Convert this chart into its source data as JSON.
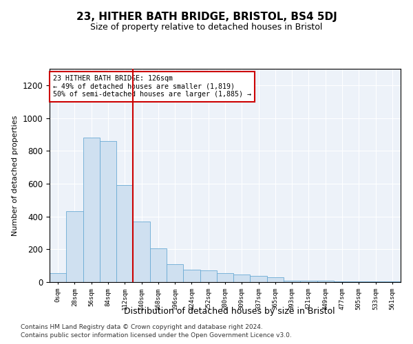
{
  "title": "23, HITHER BATH BRIDGE, BRISTOL, BS4 5DJ",
  "subtitle": "Size of property relative to detached houses in Bristol",
  "xlabel": "Distribution of detached houses by size in Bristol",
  "ylabel": "Number of detached properties",
  "bar_color": "#cfe0f0",
  "bar_edge_color": "#6aaad4",
  "vline_color": "#cc0000",
  "vline_position": 4.5,
  "annotation_text": "23 HITHER BATH BRIDGE: 126sqm\n← 49% of detached houses are smaller (1,819)\n50% of semi-detached houses are larger (1,885) →",
  "annotation_box_color": "#cc0000",
  "categories": [
    "0sqm",
    "28sqm",
    "56sqm",
    "84sqm",
    "112sqm",
    "140sqm",
    "168sqm",
    "196sqm",
    "224sqm",
    "252sqm",
    "280sqm",
    "309sqm",
    "337sqm",
    "365sqm",
    "393sqm",
    "421sqm",
    "449sqm",
    "477sqm",
    "505sqm",
    "533sqm",
    "561sqm"
  ],
  "values": [
    55,
    430,
    880,
    860,
    590,
    370,
    205,
    110,
    75,
    70,
    55,
    48,
    38,
    28,
    10,
    8,
    8,
    5,
    5,
    5,
    5
  ],
  "ylim": [
    0,
    1300
  ],
  "yticks": [
    0,
    200,
    400,
    600,
    800,
    1000,
    1200
  ],
  "footer_line1": "Contains HM Land Registry data © Crown copyright and database right 2024.",
  "footer_line2": "Contains public sector information licensed under the Open Government Licence v3.0.",
  "background_color": "#edf2f9"
}
